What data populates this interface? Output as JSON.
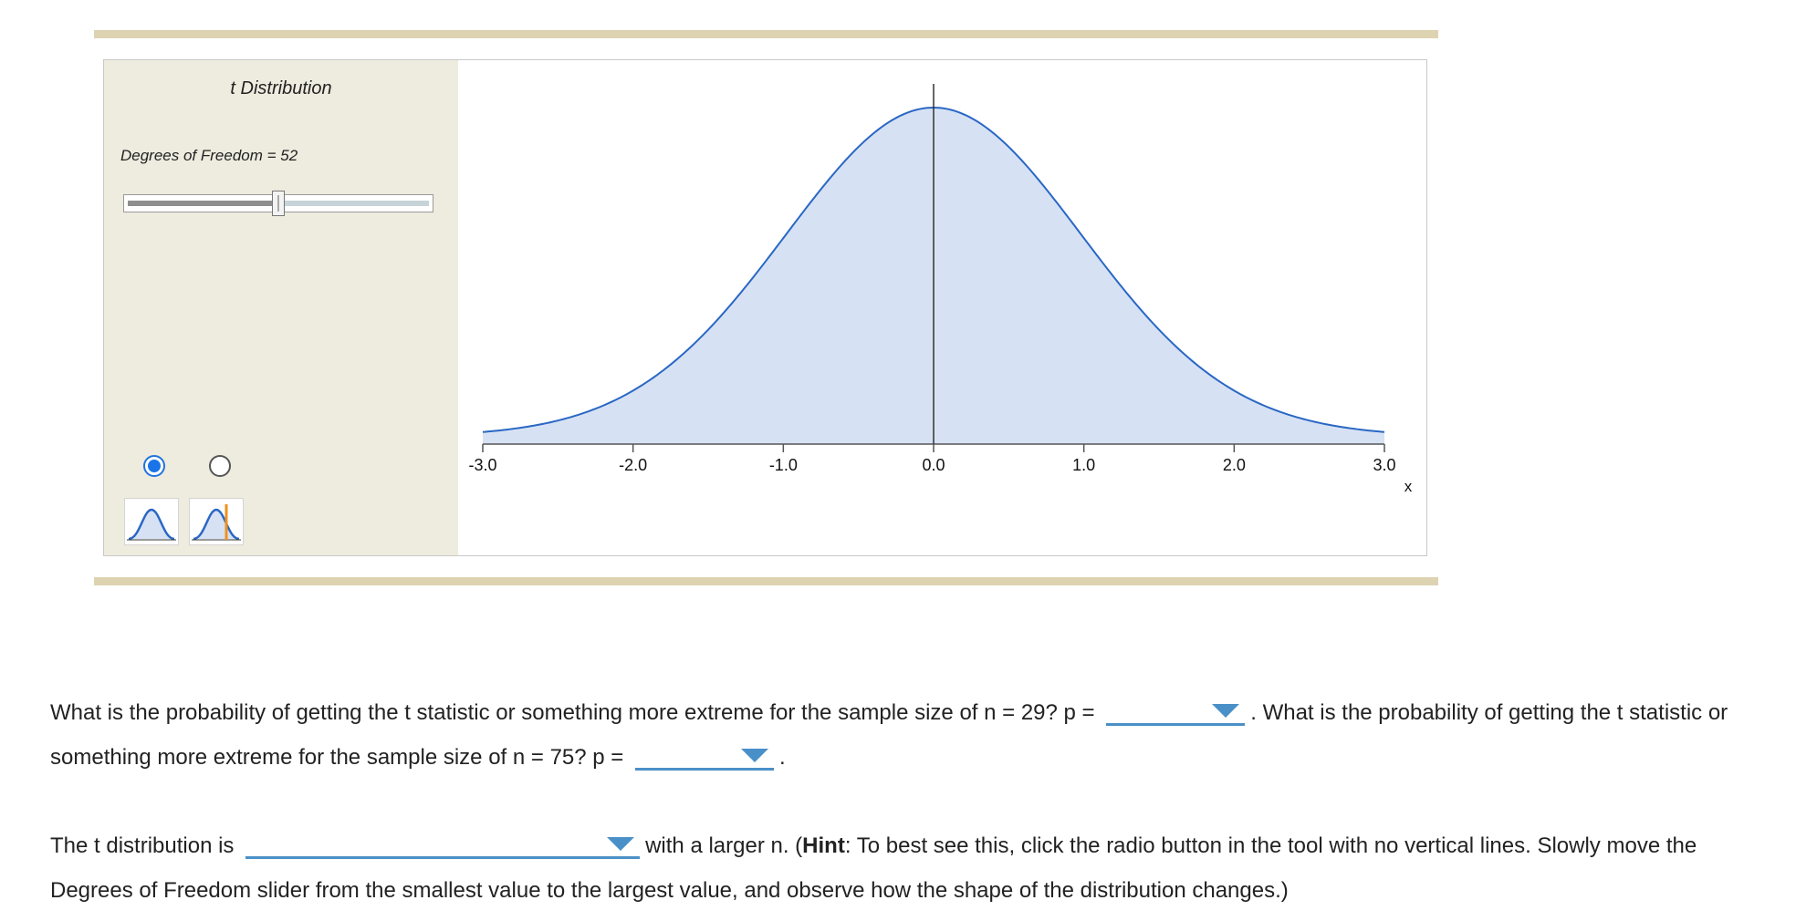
{
  "tool": {
    "title": "t Distribution",
    "df_label": "Degrees of Freedom = 52",
    "slider_fraction": 0.5,
    "mode_icons": [
      "bell-curve-icon",
      "bell-curve-with-line-icon"
    ],
    "selected_mode": "bell-curve-icon",
    "colors": {
      "panel_bg": "#eeebdf",
      "frame_bar": "#ddd3b1",
      "curve_stroke": "#2a67c4",
      "curve_fill": "#d6e2f4",
      "radio_selected": "#1a74e8",
      "marker_line": "#f0901e",
      "dropdown_accent": "#4a90c8"
    }
  },
  "chart_data": {
    "type": "area",
    "distribution": "t",
    "degrees_of_freedom": 52,
    "xlim": [
      -3.0,
      3.0
    ],
    "x_ticks": [
      "-3.0",
      "-2.0",
      "-1.0",
      "0.0",
      "1.0",
      "2.0",
      "3.0"
    ],
    "xlabel": "x",
    "vertical_line_x": 0.0,
    "grid": false
  },
  "questions": {
    "q1_part1": "What is the probability of getting the t statistic or something more extreme for the sample size of n = 29? p = ",
    "q1_part2": ". What is the probability of getting the t statistic or something more extreme for the sample size of n = 75? p = ",
    "q1_end": ".",
    "q2_part1": "The t distribution is ",
    "q2_part2": "with a larger n. (",
    "q2_hint": "Hint",
    "q2_part3": ": To best see this, click the radio button in the tool with no vertical lines. Slowly move the Degrees of Freedom slider from the smallest value to the largest value, and observe how the shape of the distribution changes.)",
    "dropdowns": {
      "p_n29": "",
      "p_n75": "",
      "shape": ""
    }
  }
}
